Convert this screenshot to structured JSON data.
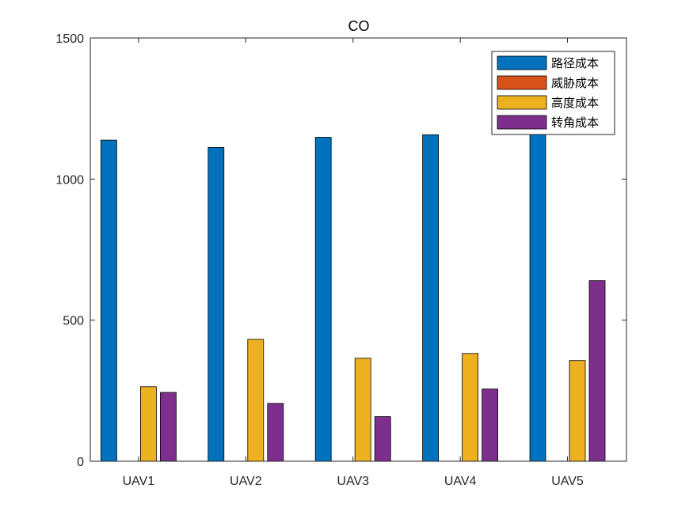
{
  "chart_data": {
    "type": "bar",
    "title": "CO",
    "xlabel": "",
    "ylabel": "",
    "categories": [
      "UAV1",
      "UAV2",
      "UAV3",
      "UAV4",
      "UAV5"
    ],
    "series": [
      {
        "name": "路径成本",
        "color": "#0072BD",
        "values": [
          1138,
          1112,
          1148,
          1157,
          1165
        ]
      },
      {
        "name": "威胁成本",
        "color": "#D95319",
        "values": [
          0,
          0,
          0,
          0,
          0
        ]
      },
      {
        "name": "高度成本",
        "color": "#EDB120",
        "values": [
          264,
          432,
          365,
          382,
          357
        ]
      },
      {
        "name": "转角成本",
        "color": "#7E2F8E",
        "values": [
          244,
          205,
          158,
          256,
          640
        ]
      }
    ],
    "ylim": [
      0,
      1500
    ],
    "yticks": [
      0,
      500,
      1000,
      1500
    ],
    "grid": false,
    "legend_position": "top-right"
  }
}
